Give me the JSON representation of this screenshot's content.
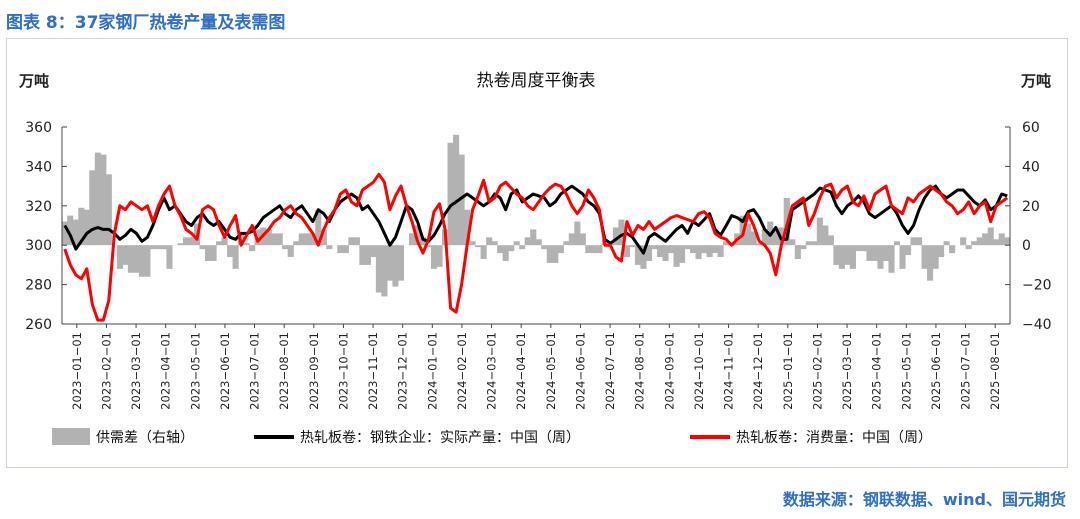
{
  "figure_title": "图表 8：37家钢厂热卷产量及表需图",
  "source": "数据来源：钢联数据、wind、国元期货",
  "chart_data": {
    "type": "line",
    "title": "热卷周度平衡表",
    "left_unit": "万吨",
    "right_unit": "万吨",
    "ylim_left": [
      260,
      360
    ],
    "yticks_left": [
      "260",
      "280",
      "300",
      "320",
      "340",
      "360"
    ],
    "ylim_right": [
      -40,
      60
    ],
    "yticks_right": [
      "−40",
      "−20",
      "0",
      "20",
      "40",
      "60"
    ],
    "x_ticks": [
      "2023−01−01",
      "2023−02−01",
      "2023−03−01",
      "2023−04−01",
      "2023−05−01",
      "2023−06−01",
      "2023−07−01",
      "2023−08−01",
      "2023−09−01",
      "2023−10−01",
      "2023−11−01",
      "2023−12−01",
      "2024−01−01",
      "2024−02−01",
      "2024−03−01",
      "2024−04−01",
      "2024−05−01",
      "2024−06−01",
      "2024−07−01",
      "2024−08−01",
      "2024−09−01",
      "2024−10−01",
      "2024−11−01",
      "2024−12−01",
      "2025−01−01",
      "2025−02−01",
      "2025−03−01",
      "2025−04−01",
      "2025−05−01",
      "2025−06−01",
      "2025−07−01",
      "2025−08−01"
    ],
    "legend": [
      "供需差（右轴）",
      "热轧板卷：钢铁企业：实际产量：中国（周）",
      "热轧板卷：消费量：中国（周）"
    ],
    "colors": {
      "gap": "#b2b2b2",
      "production": "#000000",
      "consumption": "#ff0000"
    },
    "series": [
      {
        "name": "热轧板卷：钢铁企业：实际产量：中国（周）",
        "axis": "left",
        "values": [
          310,
          305,
          298,
          302,
          306,
          308,
          309,
          308,
          308,
          306,
          303,
          305,
          308,
          306,
          302,
          304,
          310,
          318,
          324,
          318,
          320,
          316,
          312,
          310,
          314,
          316,
          312,
          310,
          312,
          308,
          304,
          303,
          306,
          306,
          307,
          310,
          314,
          316,
          318,
          320,
          316,
          314,
          318,
          320,
          316,
          312,
          318,
          316,
          312,
          318,
          322,
          324,
          326,
          324,
          318,
          320,
          316,
          312,
          306,
          300,
          304,
          312,
          320,
          318,
          312,
          303,
          302,
          305,
          310,
          316,
          320,
          322,
          324,
          326,
          324,
          322,
          320,
          322,
          326,
          324,
          318,
          326,
          328,
          322,
          324,
          326,
          325,
          324,
          320,
          322,
          326,
          328,
          330,
          328,
          326,
          322,
          320,
          316,
          303,
          301,
          303,
          305,
          306,
          304,
          300,
          296,
          304,
          306,
          304,
          302,
          305,
          308,
          310,
          306,
          312,
          310,
          313,
          316,
          308,
          305,
          310,
          315,
          314,
          312,
          317,
          318,
          314,
          308,
          305,
          309,
          303,
          303,
          318,
          320,
          322,
          324,
          326,
          329,
          328,
          327,
          320,
          316,
          320,
          322,
          325,
          322,
          316,
          314,
          316,
          318,
          320,
          316,
          310,
          306,
          310,
          318,
          324,
          328,
          330,
          326,
          324,
          326,
          328,
          328,
          325,
          322,
          320,
          323,
          318,
          320,
          326,
          325
        ]
      },
      {
        "name": "热轧板卷：消费量：中国（周）",
        "axis": "left",
        "values": [
          298,
          290,
          285,
          283,
          288,
          270,
          262,
          262,
          272,
          306,
          320,
          318,
          322,
          320,
          318,
          320,
          312,
          320,
          326,
          330,
          320,
          315,
          308,
          306,
          303,
          318,
          320,
          318,
          310,
          304,
          310,
          315,
          300,
          305,
          310,
          302,
          305,
          308,
          312,
          314,
          318,
          320,
          316,
          314,
          310,
          306,
          300,
          308,
          314,
          318,
          326,
          328,
          322,
          320,
          328,
          330,
          332,
          336,
          332,
          318,
          325,
          330,
          320,
          312,
          302,
          296,
          303,
          317,
          321,
          308,
          268,
          266,
          280,
          300,
          318,
          325,
          333,
          322,
          324,
          330,
          332,
          329,
          326,
          324,
          320,
          318,
          322,
          326,
          329,
          331,
          330,
          326,
          320,
          316,
          320,
          328,
          324,
          318,
          300,
          300,
          294,
          292,
          312,
          305,
          310,
          308,
          312,
          308,
          310,
          312,
          314,
          315,
          314,
          313,
          312,
          316,
          317,
          314,
          306,
          304,
          303,
          300,
          303,
          305,
          316,
          310,
          302,
          300,
          296,
          285,
          300,
          310,
          320,
          322,
          324,
          310,
          316,
          324,
          330,
          331,
          324,
          328,
          330,
          322,
          320,
          325,
          318,
          326,
          328,
          330,
          320,
          318,
          316,
          324,
          322,
          326,
          328,
          330,
          328,
          326,
          322,
          320,
          316,
          318,
          322,
          316,
          320,
          322,
          312,
          320,
          322,
          324
        ]
      },
      {
        "name": "供需差（右轴）",
        "axis": "right",
        "values": [
          12,
          15,
          13,
          19,
          18,
          38,
          47,
          46,
          36,
          0,
          -12,
          -10,
          -14,
          -14,
          -16,
          -16,
          -2,
          -2,
          -2,
          -12,
          0,
          1,
          4,
          4,
          11,
          -2,
          -8,
          -8,
          2,
          4,
          -6,
          -12,
          6,
          1,
          -3,
          8,
          9,
          8,
          6,
          6,
          -2,
          -6,
          2,
          6,
          6,
          6,
          18,
          8,
          -2,
          0,
          -4,
          -4,
          4,
          4,
          -10,
          -10,
          -6,
          -24,
          -26,
          -18,
          -21,
          -18,
          0,
          6,
          10,
          4,
          -1,
          -12,
          -11,
          8,
          52,
          56,
          46,
          18,
          2,
          -1,
          -7,
          4,
          2,
          -4,
          -8,
          -3,
          2,
          -2,
          4,
          8,
          3,
          -2,
          -9,
          -9,
          -4,
          2,
          6,
          12,
          6,
          -4,
          -4,
          -4,
          3,
          1,
          9,
          13,
          -6,
          -1,
          -10,
          -12,
          -8,
          -2,
          -6,
          -8,
          -4,
          -11,
          -9,
          -2,
          -4,
          -7,
          -4,
          -6,
          -4,
          -6,
          2,
          1,
          6,
          15,
          11,
          7,
          1,
          8,
          12,
          8,
          9,
          24,
          3,
          -7,
          -2,
          2,
          2,
          14,
          10,
          5,
          -10,
          -12,
          -10,
          -12,
          -3,
          -3,
          -8,
          -8,
          -12,
          -8,
          -14,
          2,
          -12,
          -5,
          4,
          4,
          -12,
          -18,
          -12,
          -6,
          2,
          -4,
          0,
          4,
          -2,
          2,
          4,
          6,
          9,
          3,
          6,
          4
        ]
      }
    ]
  }
}
